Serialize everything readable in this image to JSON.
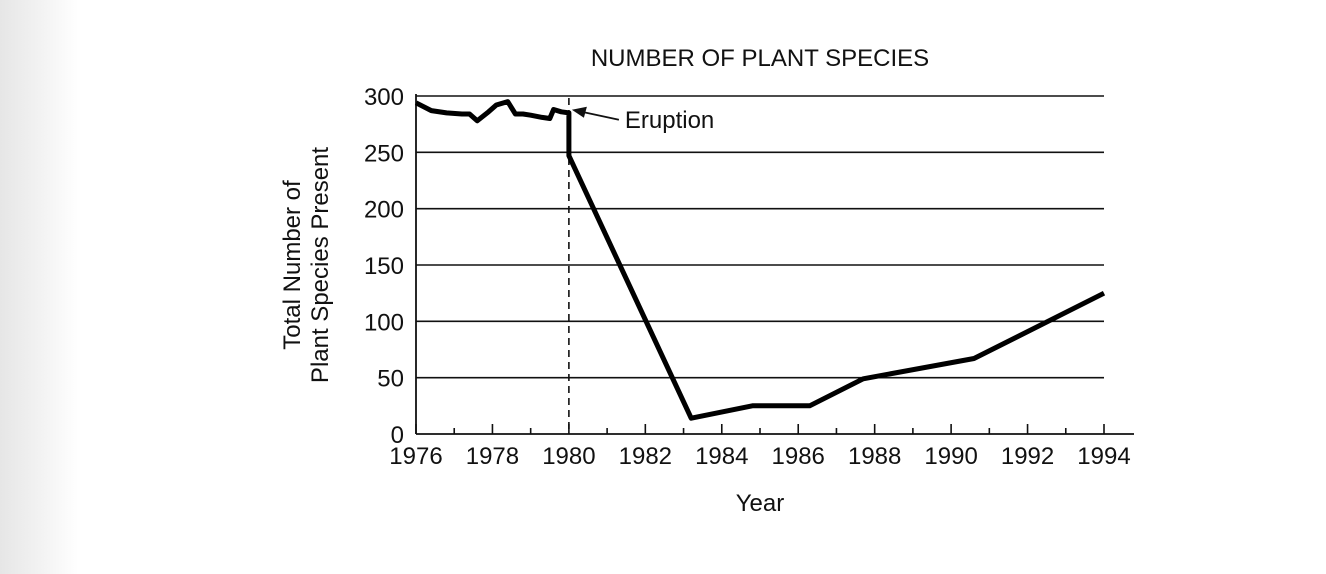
{
  "chart_data": {
    "type": "line",
    "title": "NUMBER OF PLANT SPECIES",
    "xlabel": "Year",
    "ylabel_lines": [
      "Total Number of",
      "Plant Species Present"
    ],
    "xlim": [
      1976,
      1994
    ],
    "ylim": [
      0,
      300
    ],
    "x_ticks": [
      1976,
      1978,
      1980,
      1982,
      1984,
      1986,
      1988,
      1990,
      1992,
      1994
    ],
    "y_ticks": [
      0,
      50,
      100,
      150,
      200,
      250,
      300
    ],
    "grid": "horizontal",
    "series": [
      {
        "points": [
          [
            1976.0,
            294
          ],
          [
            1976.4,
            287
          ],
          [
            1976.8,
            285
          ],
          [
            1977.2,
            284
          ],
          [
            1977.4,
            284
          ],
          [
            1977.6,
            278
          ],
          [
            1977.9,
            286
          ],
          [
            1978.1,
            292
          ],
          [
            1978.4,
            295
          ],
          [
            1978.6,
            284
          ],
          [
            1978.8,
            284
          ],
          [
            1979.0,
            283
          ],
          [
            1979.3,
            281
          ],
          [
            1979.5,
            280
          ],
          [
            1979.6,
            288
          ],
          [
            1979.8,
            286
          ],
          [
            1980.0,
            285
          ],
          [
            1980.0,
            247
          ],
          [
            1983.2,
            14
          ],
          [
            1984.8,
            25
          ],
          [
            1986.3,
            25
          ],
          [
            1987.7,
            49
          ],
          [
            1990.6,
            67
          ],
          [
            1994.0,
            125
          ]
        ]
      }
    ],
    "event_marker": {
      "x": 1980,
      "label": "Eruption",
      "line_style": "dashed"
    }
  }
}
